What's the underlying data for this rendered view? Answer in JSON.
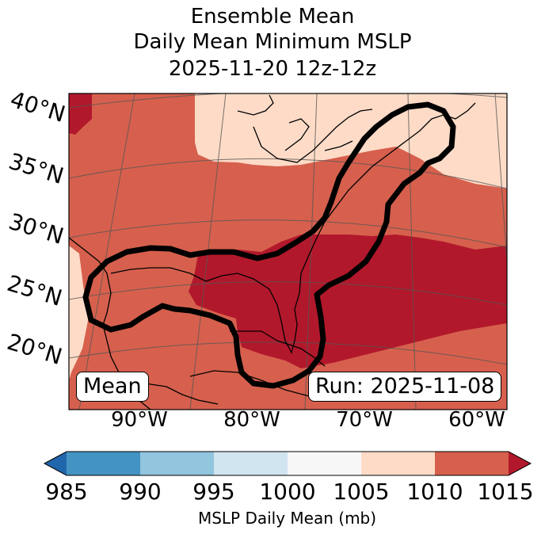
{
  "title": {
    "line1": "Ensemble Mean",
    "line2": "Daily Mean Minimum MSLP",
    "line3": "2025-11-20 12z-12z"
  },
  "map": {
    "lat_labels": [
      "40°N",
      "35°N",
      "30°N",
      "25°N",
      "20°N"
    ],
    "lon_labels": [
      "90°W",
      "80°W",
      "70°W",
      "60°W"
    ],
    "mean_badge": "Mean",
    "run_badge": "Run: 2025-11-08",
    "colors": {
      "band_1005_1010": "#fddbc7",
      "band_1010_1015": "#d6604d",
      "band_above_1015": "#b2182b",
      "outline": "#000000"
    }
  },
  "colorbar": {
    "ticks": [
      "985",
      "990",
      "995",
      "1000",
      "1005",
      "1010",
      "1015"
    ],
    "label": "MSLP Daily Mean (mb)",
    "colors": [
      "#2166ac",
      "#4393c3",
      "#92c5de",
      "#d1e5f0",
      "#f7f7f7",
      "#fddbc7",
      "#d6604d",
      "#b2182b"
    ]
  }
}
